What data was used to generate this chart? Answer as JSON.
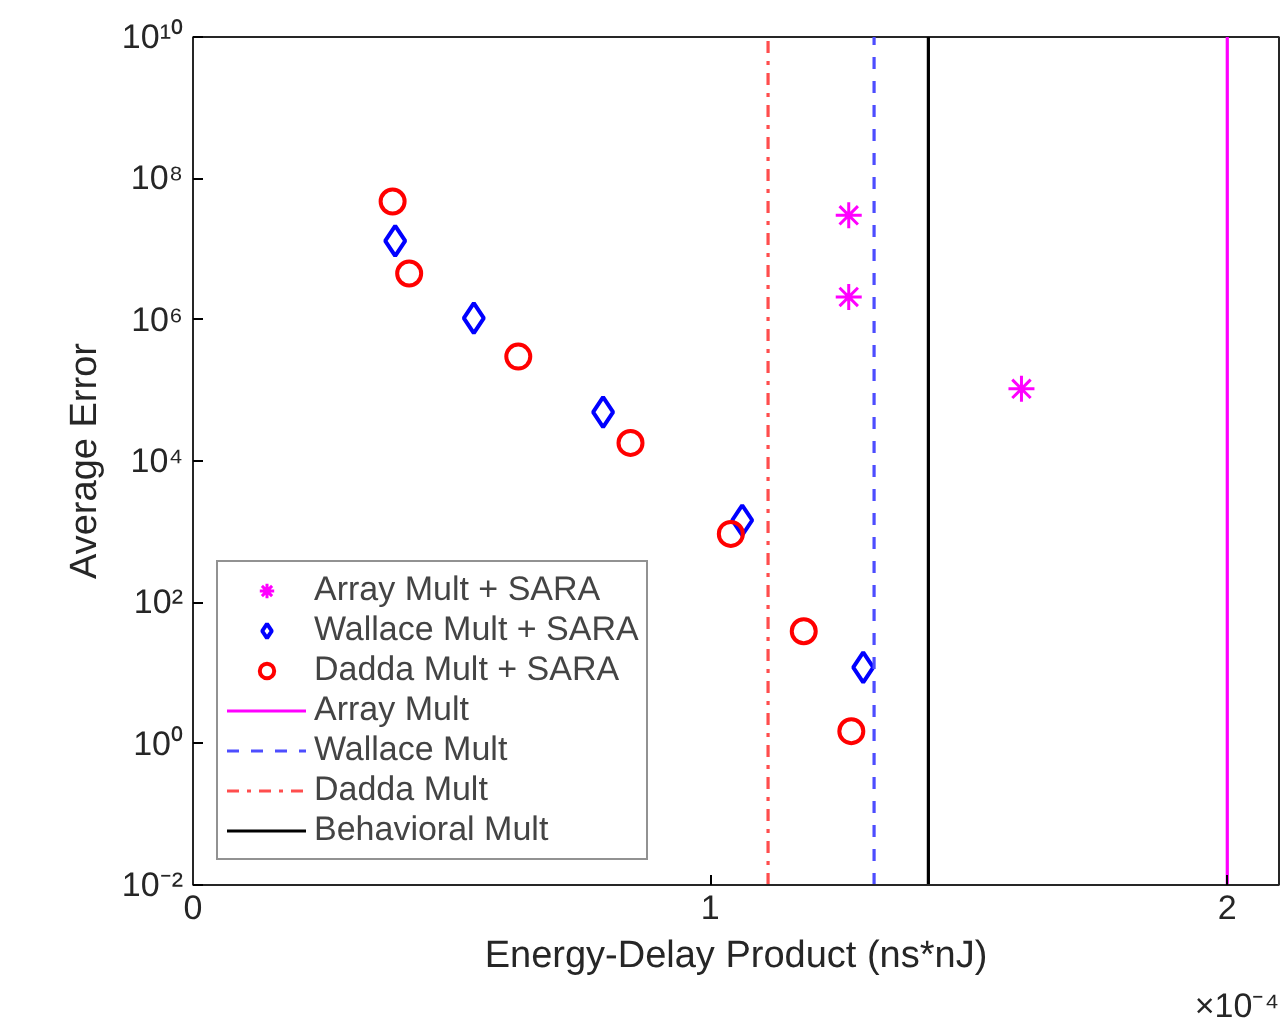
{
  "chart_data": {
    "type": "scatter",
    "xlabel": "Energy-Delay Product (ns*nJ)",
    "ylabel": "Average Error",
    "log": "y",
    "grid": false,
    "legend": "bottom left",
    "xlim": [
      0,
      2.1
    ],
    "xticks": [
      0,
      1,
      2
    ],
    "ylim": [
      0.01,
      10000000000
    ],
    "yticks": [
      {
        "value": 0.01,
        "label": "10⁻²"
      },
      {
        "value": 1,
        "label": "10⁰"
      },
      {
        "value": 100,
        "label": "10²"
      },
      {
        "value": 10000,
        "label": "10⁴"
      },
      {
        "value": 1000000,
        "label": "10⁶"
      },
      {
        "value": 100000000,
        "label": "10⁸"
      },
      {
        "value": 10000000000,
        "label": "10¹⁰"
      }
    ],
    "annotations": [
      "×10⁻⁴"
    ],
    "series": [
      {
        "name": "Array Mult + SARA",
        "color": "#ff00ff",
        "marker": "cross",
        "x": [
          1.268,
          1.268,
          1.602
        ],
        "values": [
          30000000,
          2100000,
          105000
        ]
      },
      {
        "name": "Wallace Mult + SARA",
        "color": "#0000ff",
        "marker": "diamond",
        "x": [
          0.391,
          0.543,
          0.793,
          1.062,
          1.296
        ],
        "values": [
          13000000,
          1050000,
          49000,
          1450,
          12
        ]
      },
      {
        "name": "Dadda Mult + SARA",
        "color": "#ff0000",
        "marker": "circle",
        "x": [
          0.386,
          0.418,
          0.629,
          0.846,
          1.04,
          1.181,
          1.273
        ],
        "values": [
          47000000,
          4500000,
          300000,
          18000,
          930,
          39,
          1.5
        ]
      },
      {
        "name": "Array Mult",
        "type": "line",
        "color": "#ff00ff",
        "line_style": "solid",
        "x": [
          2.0,
          2.0
        ],
        "values": [
          0.01,
          10000000000
        ]
      },
      {
        "name": "Wallace Mult",
        "type": "line",
        "color": "#4d4dff",
        "line_style": "dashed",
        "x": [
          1.317,
          1.317
        ],
        "values": [
          0.01,
          10000000000
        ]
      },
      {
        "name": "Dadda Mult",
        "type": "line",
        "color": "#ff4d4d",
        "line_style": "dashdot",
        "x": [
          1.112,
          1.112
        ],
        "values": [
          0.01,
          10000000000
        ]
      },
      {
        "name": "Behavioral Mult",
        "type": "line",
        "color": "#000000",
        "line_style": "solid",
        "x": [
          1.422,
          1.422
        ],
        "values": [
          0.01,
          10000000000
        ]
      }
    ]
  }
}
